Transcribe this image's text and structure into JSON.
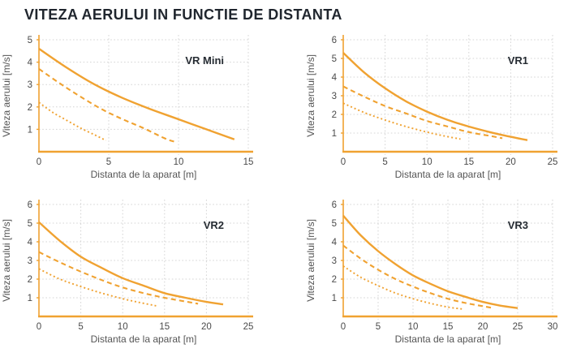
{
  "title": "VITEZA AERULUI IN FUNCTIE DE DISTANTA",
  "colors": {
    "accent": "#F0A231",
    "grid": "#D4D4D4",
    "tick_text": "#4A4A4A",
    "axis_title_text": "#555555",
    "title_text": "#20262E",
    "background": "#FFFFFF"
  },
  "chart_data": [
    {
      "type": "line",
      "label": "VR Mini",
      "xlabel": "Distanta de la aparat [m]",
      "ylabel": "Viteza aerului [m/s]",
      "xlim": [
        0,
        15
      ],
      "ylim": [
        0,
        5
      ],
      "xticks": [
        0,
        5,
        10,
        15
      ],
      "yticks": [
        1,
        2,
        3,
        4,
        5
      ],
      "grid": true,
      "legend": "none",
      "series": [
        {
          "name": "speed-high-solid",
          "style": "solid",
          "points": [
            [
              0,
              4.6
            ],
            [
              2,
              3.75
            ],
            [
              4,
              3.0
            ],
            [
              6,
              2.4
            ],
            [
              8,
              1.9
            ],
            [
              10,
              1.45
            ],
            [
              12,
              1.0
            ],
            [
              14,
              0.55
            ]
          ]
        },
        {
          "name": "speed-mid-dashed",
          "style": "dashed",
          "points": [
            [
              0,
              3.7
            ],
            [
              1.5,
              3.05
            ],
            [
              3,
              2.45
            ],
            [
              4.5,
              1.9
            ],
            [
              6,
              1.45
            ],
            [
              7.5,
              1.05
            ],
            [
              9,
              0.6
            ],
            [
              9.7,
              0.45
            ]
          ]
        },
        {
          "name": "speed-low-dotted",
          "style": "dotted",
          "points": [
            [
              0,
              2.2
            ],
            [
              1,
              1.75
            ],
            [
              2,
              1.4
            ],
            [
              3,
              1.05
            ],
            [
              4,
              0.75
            ],
            [
              4.8,
              0.5
            ]
          ]
        }
      ]
    },
    {
      "type": "line",
      "label": "VR1",
      "xlabel": "Distanta de la aparat [m]",
      "ylabel": "Viteza aerului [m/s]",
      "xlim": [
        0,
        25
      ],
      "ylim": [
        0,
        6
      ],
      "xticks": [
        0,
        5,
        10,
        15,
        20,
        25
      ],
      "yticks": [
        1,
        2,
        3,
        4,
        5,
        6
      ],
      "grid": true,
      "legend": "none",
      "series": [
        {
          "name": "speed-high-solid",
          "style": "solid",
          "points": [
            [
              0,
              5.3
            ],
            [
              2.5,
              4.25
            ],
            [
              5,
              3.4
            ],
            [
              7.5,
              2.7
            ],
            [
              10,
              2.15
            ],
            [
              12.5,
              1.7
            ],
            [
              15,
              1.35
            ],
            [
              17.5,
              1.05
            ],
            [
              20,
              0.8
            ],
            [
              22,
              0.62
            ]
          ]
        },
        {
          "name": "speed-mid-dashed",
          "style": "dashed",
          "points": [
            [
              0,
              3.5
            ],
            [
              2.5,
              2.95
            ],
            [
              5,
              2.45
            ],
            [
              7.5,
              2.05
            ],
            [
              10,
              1.65
            ],
            [
              12.5,
              1.35
            ],
            [
              15,
              1.05
            ],
            [
              17.5,
              0.85
            ],
            [
              19,
              0.72
            ]
          ]
        },
        {
          "name": "speed-low-dotted",
          "style": "dotted",
          "points": [
            [
              0,
              2.6
            ],
            [
              2.5,
              2.1
            ],
            [
              5,
              1.7
            ],
            [
              7.5,
              1.35
            ],
            [
              10,
              1.05
            ],
            [
              12,
              0.85
            ],
            [
              14,
              0.68
            ]
          ]
        }
      ]
    },
    {
      "type": "line",
      "label": "VR2",
      "xlabel": "Distanta de la aparat [m]",
      "ylabel": "Viteza aerului [m/s]",
      "xlim": [
        0,
        25
      ],
      "ylim": [
        0,
        6
      ],
      "xticks": [
        0,
        5,
        10,
        15,
        20,
        25
      ],
      "yticks": [
        1,
        2,
        3,
        4,
        5,
        6
      ],
      "grid": true,
      "legend": "none",
      "series": [
        {
          "name": "speed-high-solid",
          "style": "solid",
          "points": [
            [
              0,
              5.05
            ],
            [
              2.5,
              4.05
            ],
            [
              5,
              3.2
            ],
            [
              7.5,
              2.6
            ],
            [
              10,
              2.05
            ],
            [
              12.5,
              1.65
            ],
            [
              15,
              1.25
            ],
            [
              17.5,
              1.0
            ],
            [
              20,
              0.78
            ],
            [
              22,
              0.65
            ]
          ]
        },
        {
          "name": "speed-mid-dashed",
          "style": "dashed",
          "points": [
            [
              0,
              3.45
            ],
            [
              2.5,
              2.9
            ],
            [
              5,
              2.4
            ],
            [
              7.5,
              1.95
            ],
            [
              10,
              1.55
            ],
            [
              12.5,
              1.25
            ],
            [
              15,
              1.0
            ],
            [
              17.5,
              0.8
            ],
            [
              19,
              0.68
            ]
          ]
        },
        {
          "name": "speed-low-dotted",
          "style": "dotted",
          "points": [
            [
              0,
              2.55
            ],
            [
              2.5,
              2.0
            ],
            [
              5,
              1.6
            ],
            [
              7.5,
              1.25
            ],
            [
              10,
              0.95
            ],
            [
              12,
              0.75
            ],
            [
              14,
              0.57
            ]
          ]
        }
      ]
    },
    {
      "type": "line",
      "label": "VR3",
      "xlabel": "Distanta de la aparat [m]",
      "ylabel": "Viteza aerului [m/s]",
      "xlim": [
        0,
        30
      ],
      "ylim": [
        0,
        6
      ],
      "xticks": [
        0,
        5,
        10,
        15,
        20,
        25,
        30
      ],
      "yticks": [
        1,
        2,
        3,
        4,
        5,
        6
      ],
      "grid": true,
      "legend": "none",
      "series": [
        {
          "name": "speed-high-solid",
          "style": "solid",
          "points": [
            [
              0,
              5.4
            ],
            [
              2.5,
              4.35
            ],
            [
              5,
              3.5
            ],
            [
              7.5,
              2.8
            ],
            [
              10,
              2.2
            ],
            [
              12.5,
              1.75
            ],
            [
              15,
              1.35
            ],
            [
              17.5,
              1.05
            ],
            [
              20,
              0.78
            ],
            [
              22.5,
              0.58
            ],
            [
              25,
              0.45
            ]
          ]
        },
        {
          "name": "speed-mid-dashed",
          "style": "dashed",
          "points": [
            [
              0,
              3.8
            ],
            [
              2.5,
              3.1
            ],
            [
              5,
              2.5
            ],
            [
              7.5,
              2.0
            ],
            [
              10,
              1.6
            ],
            [
              12.5,
              1.25
            ],
            [
              15,
              0.95
            ],
            [
              17.5,
              0.72
            ],
            [
              20,
              0.55
            ],
            [
              21.5,
              0.45
            ]
          ]
        },
        {
          "name": "speed-low-dotted",
          "style": "dotted",
          "points": [
            [
              0,
              2.7
            ],
            [
              2.5,
              2.1
            ],
            [
              5,
              1.65
            ],
            [
              7.5,
              1.25
            ],
            [
              10,
              0.95
            ],
            [
              12.5,
              0.7
            ],
            [
              15,
              0.5
            ],
            [
              17,
              0.4
            ]
          ]
        }
      ]
    }
  ]
}
